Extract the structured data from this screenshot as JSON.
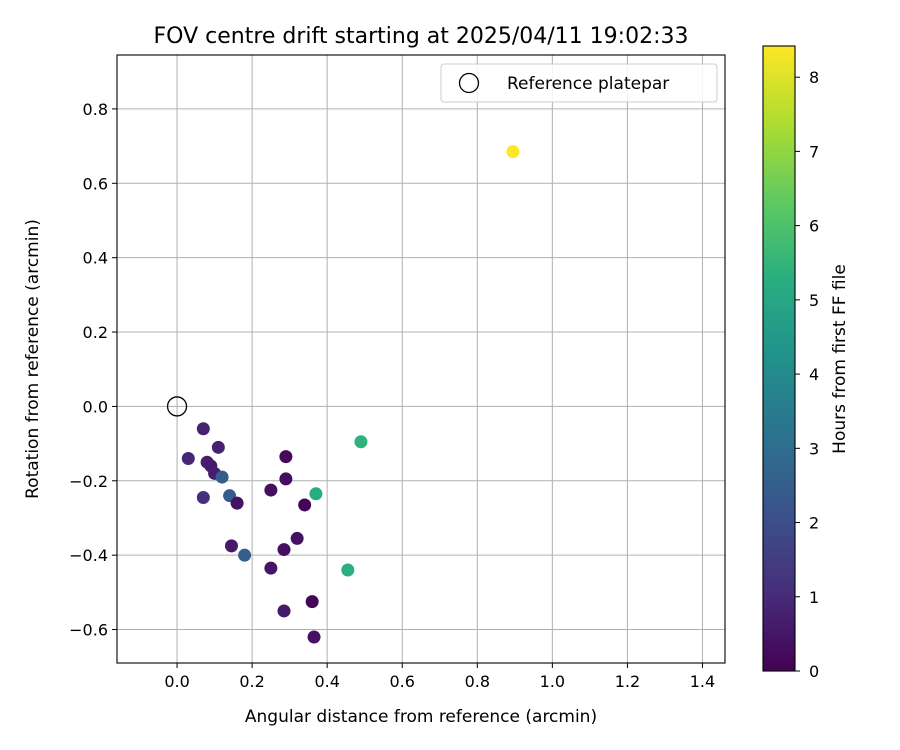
{
  "chart_data": {
    "type": "scatter",
    "title": "FOV centre drift starting at 2025/04/11 19:02:33",
    "xlabel": "Angular distance from reference (arcmin)",
    "ylabel": "Rotation from reference (arcmin)",
    "xlim": [
      -0.16,
      1.46
    ],
    "ylim": [
      -0.69,
      0.945
    ],
    "xticks": [
      0.0,
      0.2,
      0.4,
      0.6,
      0.8,
      1.0,
      1.2,
      1.4
    ],
    "yticks": [
      -0.6,
      -0.4,
      -0.2,
      0.0,
      0.2,
      0.4,
      0.6,
      0.8
    ],
    "xtick_labels": [
      "0.0",
      "0.2",
      "0.4",
      "0.6",
      "0.8",
      "1.0",
      "1.2",
      "1.4"
    ],
    "ytick_labels": [
      "−0.6",
      "−0.4",
      "−0.2",
      "0.0",
      "0.2",
      "0.4",
      "0.6",
      "0.8"
    ],
    "grid": true,
    "colormap": "viridis",
    "colorbar": {
      "label": "Hours from first FF file",
      "range": [
        0,
        8.42
      ],
      "ticks": [
        0,
        1,
        2,
        3,
        4,
        5,
        6,
        7,
        8
      ],
      "tick_labels": [
        "0",
        "1",
        "2",
        "3",
        "4",
        "5",
        "6",
        "7",
        "8"
      ]
    },
    "legend": {
      "placement": "top-right",
      "entries": [
        {
          "label": "Reference platepar",
          "marker": "open-circle"
        }
      ]
    },
    "reference_point": {
      "x": 0.0,
      "y": 0.0
    },
    "points": [
      {
        "x": 0.07,
        "y": -0.06,
        "hours": 0.8
      },
      {
        "x": 0.03,
        "y": -0.14,
        "hours": 0.9
      },
      {
        "x": 0.11,
        "y": -0.11,
        "hours": 0.8
      },
      {
        "x": 0.08,
        "y": -0.15,
        "hours": 0.7
      },
      {
        "x": 0.09,
        "y": -0.16,
        "hours": 0.6
      },
      {
        "x": 0.1,
        "y": -0.18,
        "hours": 0.7
      },
      {
        "x": 0.12,
        "y": -0.19,
        "hours": 2.5
      },
      {
        "x": 0.07,
        "y": -0.245,
        "hours": 1.1
      },
      {
        "x": 0.14,
        "y": -0.24,
        "hours": 2.4
      },
      {
        "x": 0.16,
        "y": -0.26,
        "hours": 0.4
      },
      {
        "x": 0.145,
        "y": -0.375,
        "hours": 0.6
      },
      {
        "x": 0.18,
        "y": -0.4,
        "hours": 2.6
      },
      {
        "x": 0.25,
        "y": -0.225,
        "hours": 0.3
      },
      {
        "x": 0.29,
        "y": -0.135,
        "hours": 0.2
      },
      {
        "x": 0.29,
        "y": -0.195,
        "hours": 0.3
      },
      {
        "x": 0.34,
        "y": -0.265,
        "hours": 0.1
      },
      {
        "x": 0.37,
        "y": -0.235,
        "hours": 5.2
      },
      {
        "x": 0.49,
        "y": -0.095,
        "hours": 5.4
      },
      {
        "x": 0.32,
        "y": -0.355,
        "hours": 0.4
      },
      {
        "x": 0.285,
        "y": -0.385,
        "hours": 0.3
      },
      {
        "x": 0.25,
        "y": -0.435,
        "hours": 0.5
      },
      {
        "x": 0.455,
        "y": -0.44,
        "hours": 5.3
      },
      {
        "x": 0.285,
        "y": -0.55,
        "hours": 0.6
      },
      {
        "x": 0.36,
        "y": -0.525,
        "hours": 0.1
      },
      {
        "x": 0.365,
        "y": -0.62,
        "hours": 0.4
      },
      {
        "x": 0.895,
        "y": 0.685,
        "hours": 8.4
      }
    ]
  }
}
